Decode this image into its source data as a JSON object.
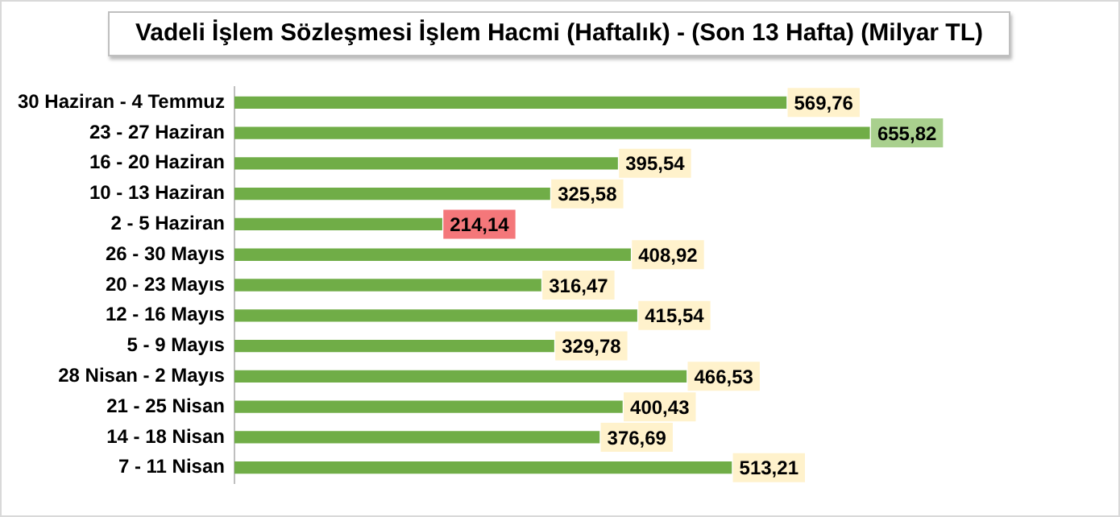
{
  "chart_data": {
    "type": "bar",
    "orientation": "horizontal",
    "title": "Vadeli İşlem Sözleşmesi İşlem Hacmi (Haftalık) - (Son 13 Hafta) (Milyar TL)",
    "categories": [
      "30 Haziran - 4 Temmuz",
      "23 - 27 Haziran",
      "16 - 20 Haziran",
      "10 - 13 Haziran",
      "2 - 5 Haziran",
      "26 - 30 Mayıs",
      "20 - 23 Mayıs",
      "12 - 16 Mayıs",
      "5 - 9 Mayıs",
      "28 Nisan - 2 Mayıs",
      "21 - 25 Nisan",
      "14 - 18 Nisan",
      "7 - 11 Nisan"
    ],
    "values": [
      569.76,
      655.82,
      395.54,
      325.58,
      214.14,
      408.92,
      316.47,
      415.54,
      329.78,
      466.53,
      400.43,
      376.69,
      513.21
    ],
    "value_labels": [
      "569,76",
      "655,82",
      "395,54",
      "325,58",
      "214,14",
      "408,92",
      "316,47",
      "415,54",
      "329,78",
      "466,53",
      "400,43",
      "376,69",
      "513,21"
    ],
    "color": "#70ad47",
    "tick_labels": "y",
    "grid": false,
    "legend": false
  }
}
